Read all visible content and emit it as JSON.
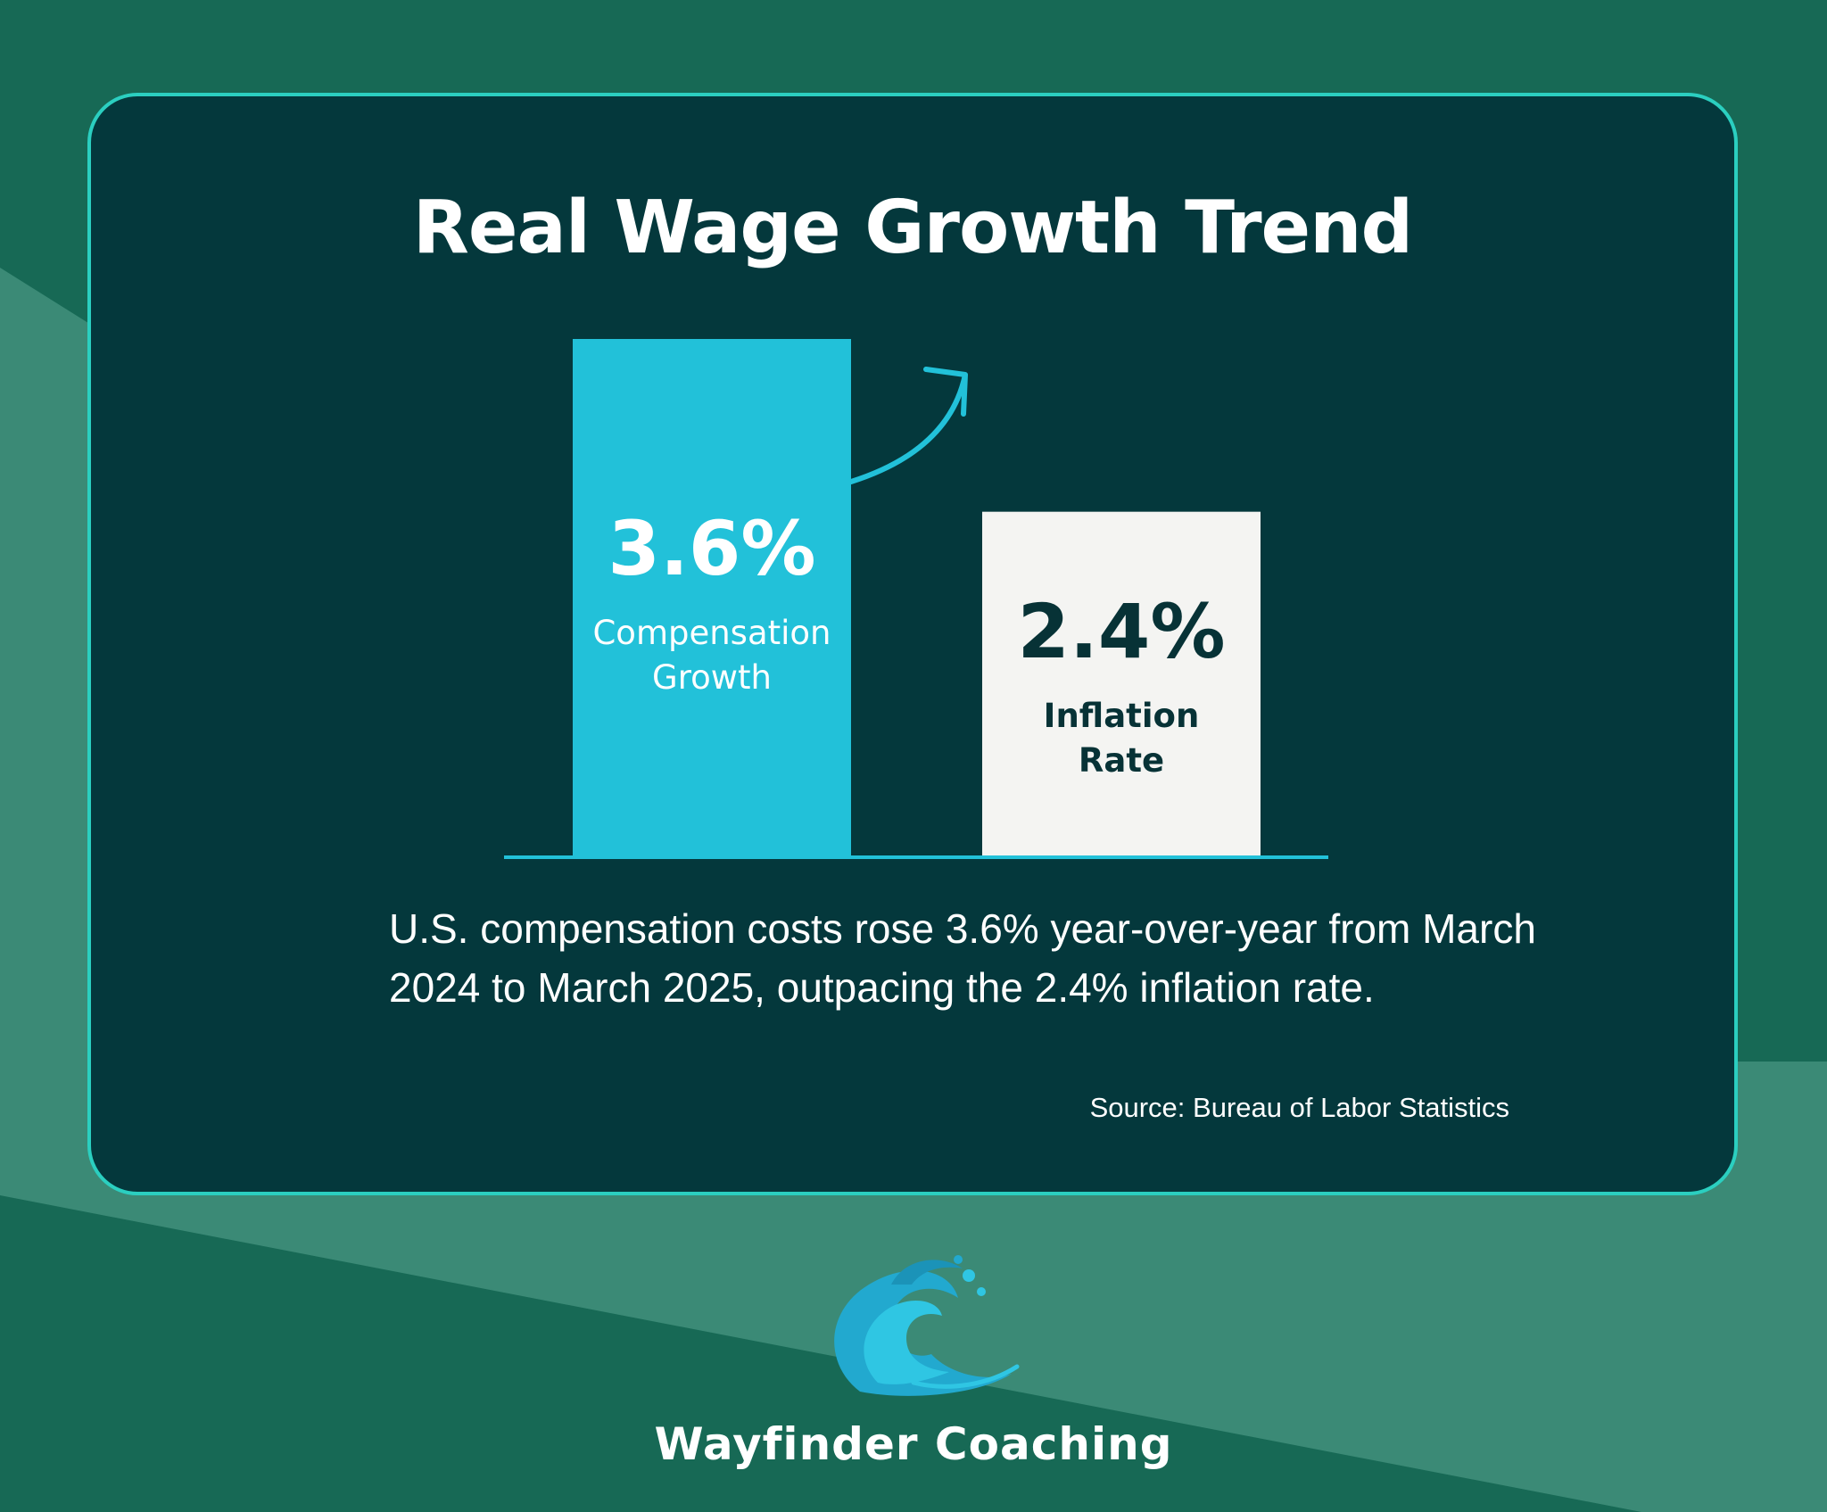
{
  "title": "Real Wage Growth Trend",
  "description": "U.S. compensation costs rose 3.6% year-over-year from March 2024 to March 2025, outpacing the 2.4% inflation rate.",
  "source": "Source: Bureau of Labor Statistics",
  "brand": {
    "name": "Wayfinder Coaching"
  },
  "colors": {
    "page_background": "#176955",
    "background_band": "#3b8a76",
    "card_background": "#04383c",
    "card_border": "#2bcfc0",
    "compensation_bar": "#22c1d9",
    "inflation_bar": "#f4f4f2",
    "baseline": "#22c1d9",
    "inflation_text": "#073236"
  },
  "chart_data": {
    "type": "bar",
    "title": "Real Wage Growth Trend",
    "categories": [
      "Compensation Growth",
      "Inflation Rate"
    ],
    "category_lines": [
      [
        "Compensation",
        "Growth"
      ],
      [
        "Inflation",
        "Rate"
      ]
    ],
    "values": [
      3.6,
      2.4
    ],
    "value_labels": [
      "3.6%",
      "2.4%"
    ],
    "unit": "%",
    "ylim": [
      0,
      3.6
    ],
    "grid": false,
    "legend": "none",
    "annotation": "upward-trend-arrow"
  }
}
